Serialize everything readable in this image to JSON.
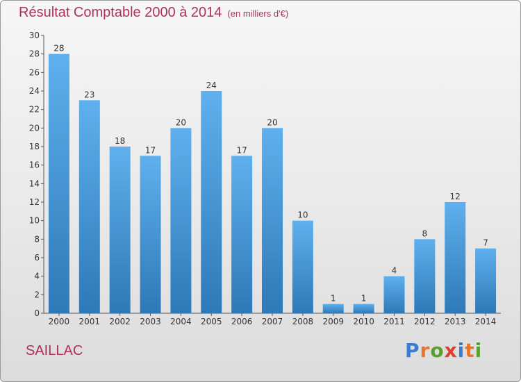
{
  "title": "Résultat Comptable 2000 à 2014",
  "subtitle": "(en milliers d'€)",
  "city": "SAILLAC",
  "logo": {
    "text": "Proxiti",
    "colors": [
      "#3a7bd5",
      "#e8752a",
      "#5aa02c",
      "#e33b2e",
      "#3a7bd5",
      "#e8752a",
      "#5aa02c"
    ]
  },
  "colors": {
    "bar_top": "#5fb0ee",
    "bar_bottom": "#2e79b8",
    "title": "#b0305a"
  },
  "chart_data": {
    "type": "bar",
    "categories": [
      "2000",
      "2001",
      "2002",
      "2003",
      "2004",
      "2005",
      "2006",
      "2007",
      "2008",
      "2009",
      "2010",
      "2011",
      "2012",
      "2013",
      "2014"
    ],
    "values": [
      28,
      23,
      18,
      17,
      20,
      24,
      17,
      20,
      10,
      1,
      1,
      4,
      8,
      12,
      7
    ],
    "ylim": [
      0,
      30
    ],
    "yticks": [
      0,
      2,
      4,
      6,
      8,
      10,
      12,
      14,
      16,
      18,
      20,
      22,
      24,
      26,
      28,
      30
    ],
    "grid": false,
    "xlabel": "",
    "ylabel": ""
  }
}
